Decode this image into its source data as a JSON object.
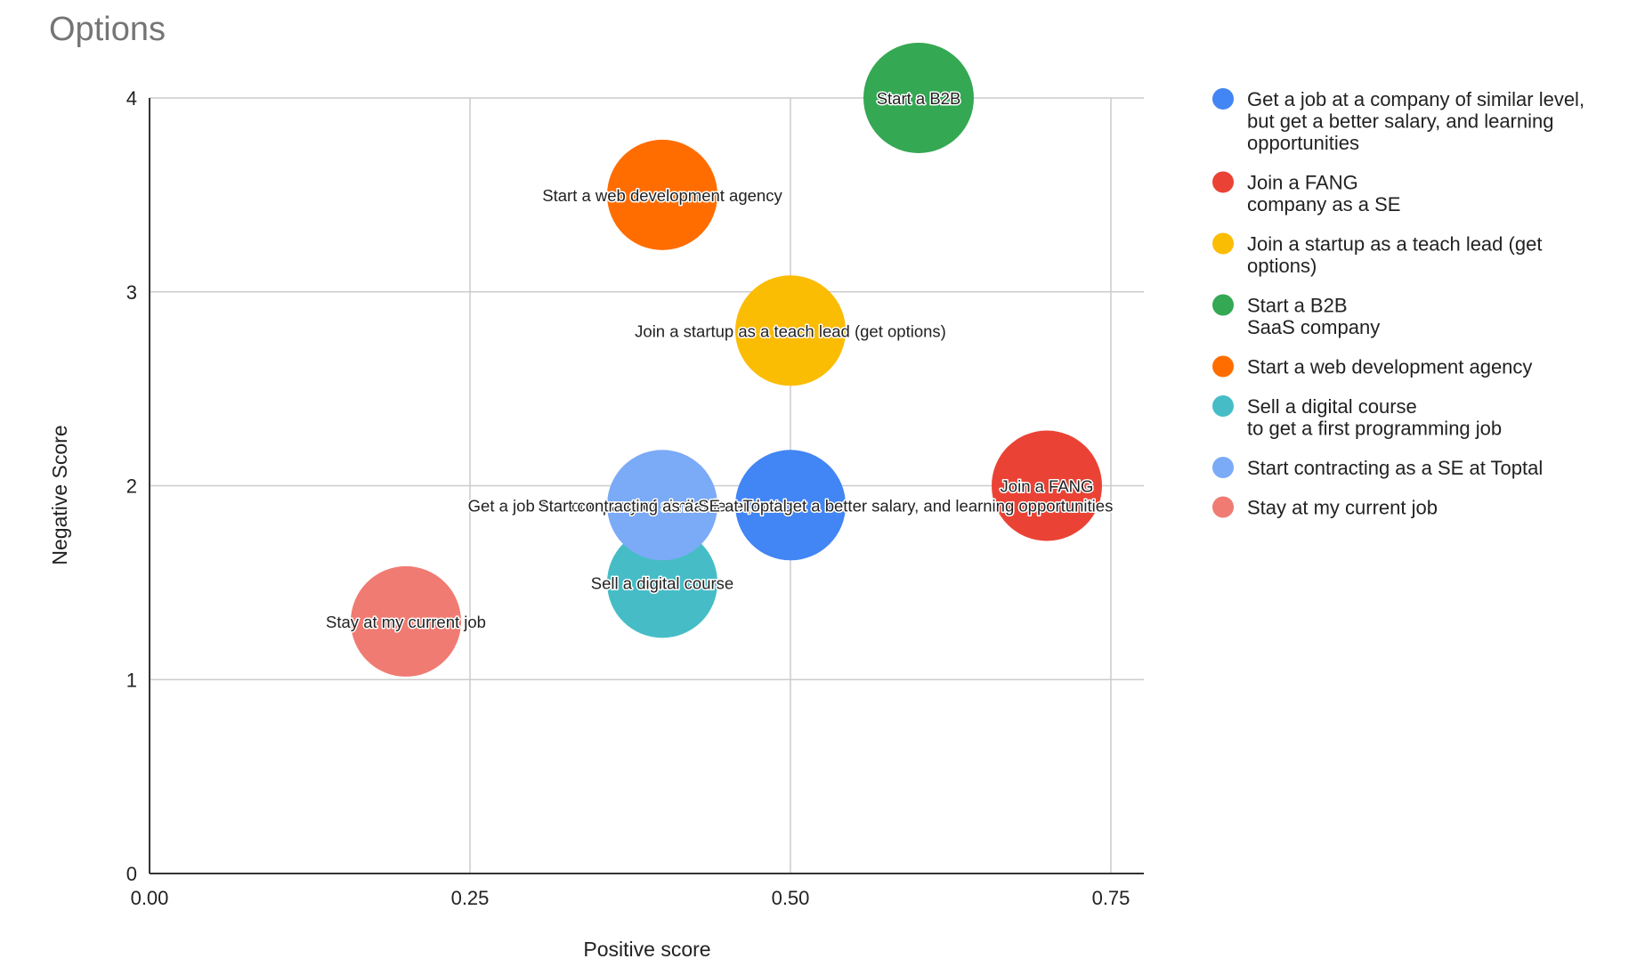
{
  "chart_data": {
    "type": "bubble",
    "title": "Options",
    "xlabel": "Positive score",
    "ylabel": "Negative Score",
    "xlim": [
      0,
      0.78
    ],
    "ylim": [
      0,
      4
    ],
    "xticks": [
      "0.00",
      "0.25",
      "0.50",
      "0.75"
    ],
    "xtick_values": [
      0,
      0.25,
      0.5,
      0.75
    ],
    "yticks": [
      "0",
      "1",
      "2",
      "3",
      "4"
    ],
    "ytick_values": [
      0,
      1,
      2,
      3,
      4
    ],
    "grid": true,
    "legend_position": "right",
    "series": [
      {
        "name": "Get a job at a company of similar level, but get a better salary, and learning opportunities",
        "legend_lines": [
          "Get a job at a company of similar level,",
          "but get a better salary, and learning",
          "opportunities"
        ],
        "label": "Get a job at a company of similar level, but get a better salary, and learning opportunities",
        "x": 0.5,
        "y": 1.9,
        "color": "#4285F4"
      },
      {
        "name": "Join a FANG company as a SE",
        "legend_lines": [
          "Join a FANG",
          "company as a SE"
        ],
        "label": "Join a FANG",
        "x": 0.7,
        "y": 2.0,
        "color": "#EA4335"
      },
      {
        "name": "Join a startup as a teach lead (get options)",
        "legend_lines": [
          "Join a startup as a teach lead (get",
          "options)"
        ],
        "label": "Join a startup as a teach lead (get options)",
        "x": 0.5,
        "y": 2.8,
        "color": "#FBBC04"
      },
      {
        "name": "Start a B2B SaaS company",
        "legend_lines": [
          "Start a B2B",
          "SaaS company"
        ],
        "label": "Start a B2B",
        "x": 0.6,
        "y": 4.0,
        "color": "#34A853"
      },
      {
        "name": "Start a web development agency",
        "legend_lines": [
          "Start a web development agency"
        ],
        "label": "Start a web development agency",
        "x": 0.4,
        "y": 3.5,
        "color": "#FF6D01"
      },
      {
        "name": "Sell a digital course to get a first programming job",
        "legend_lines": [
          "Sell a digital course",
          "to get a first programming job"
        ],
        "label": "Sell a digital course",
        "x": 0.4,
        "y": 1.5,
        "color": "#46BDC6"
      },
      {
        "name": "Start contracting as a SE at Toptal",
        "legend_lines": [
          "Start contracting as a SE at Toptal"
        ],
        "label": "Start contracting as a SE at Toptal",
        "x": 0.4,
        "y": 1.9,
        "color": "#7BAAF7"
      },
      {
        "name": "Stay at my current job",
        "legend_lines": [
          "Stay at my current job"
        ],
        "label": "Stay at my current job",
        "x": 0.2,
        "y": 1.3,
        "color": "#F07B72"
      }
    ]
  }
}
